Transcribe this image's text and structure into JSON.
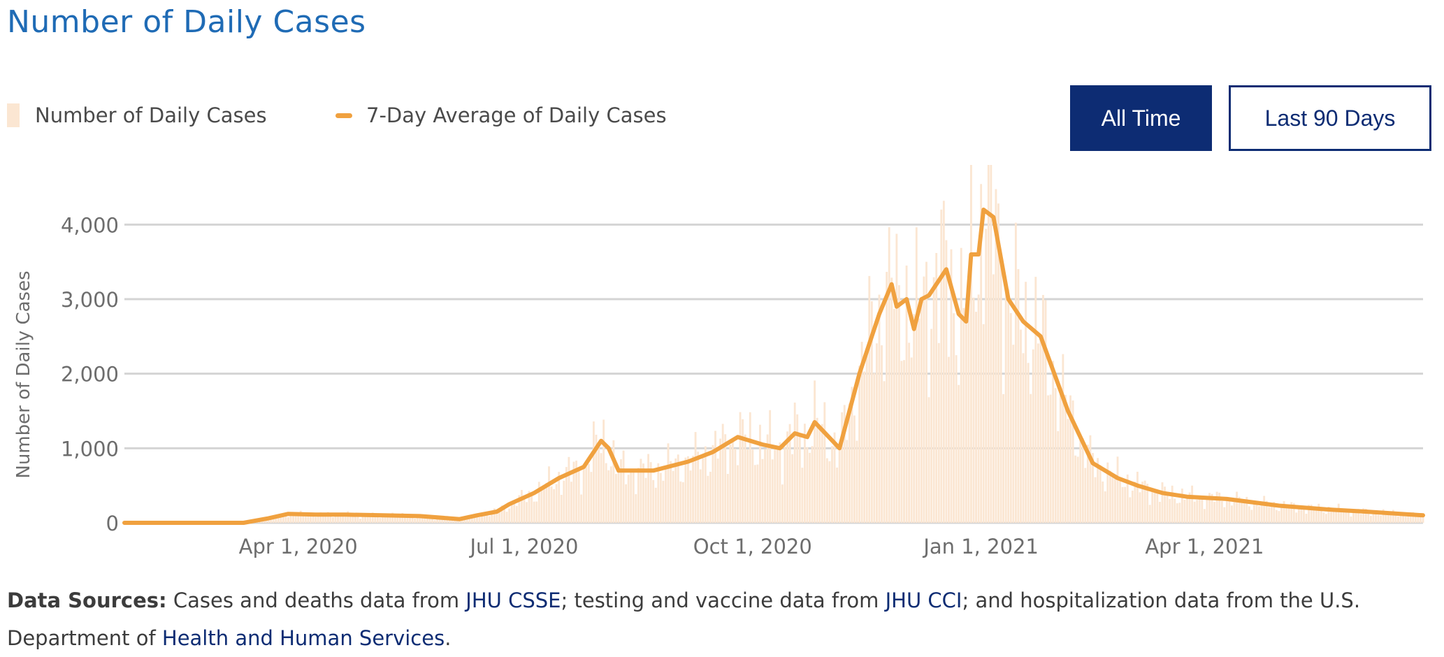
{
  "header": {
    "title": "Number of Daily Cases"
  },
  "legend": {
    "bars_label": "Number of Daily Cases",
    "line_label": "7-Day Average of Daily Cases"
  },
  "buttons": {
    "all_time": "All Time",
    "last_90_days": "Last 90 Days",
    "active": "all_time"
  },
  "colors": {
    "title": "#1f6bb5",
    "bar": "#fbe6d2",
    "line": "#f0a13f",
    "grid": "#d4d4d4",
    "axis_text": "#6d6d6d",
    "button_dark": "#0d2c73",
    "link": "#0d2c73"
  },
  "footer": {
    "label": "Data Sources:",
    "t1": " Cases and deaths data from ",
    "link1": "JHU CSSE",
    "t2": "; testing and vaccine data from ",
    "link2": "JHU CCI",
    "t3": "; and hospitalization data from the U.S.",
    "t4": "Department of ",
    "link3": "Health and Human Services",
    "t5": "."
  },
  "chart_data": {
    "type": "bar",
    "title": "Number of Daily Cases",
    "ylabel": "Number of Daily Cases",
    "xlabel": "",
    "x_range": [
      "2020-01-22",
      "2021-06-28"
    ],
    "ylim": [
      0,
      4800
    ],
    "y_ticks": [
      0,
      1000,
      2000,
      3000,
      4000
    ],
    "y_tick_labels": [
      "0",
      "1,000",
      "2,000",
      "3,000",
      "4,000"
    ],
    "x_ticks": [
      "2020-04-01",
      "2020-07-01",
      "2020-10-01",
      "2021-01-01",
      "2021-04-01"
    ],
    "x_tick_labels": [
      "Apr 1, 2020",
      "Jul 1, 2020",
      "Oct 1, 2020",
      "Jan 1, 2021",
      "Apr 1, 2021"
    ],
    "grid": true,
    "legend_position": "top-left",
    "series": [
      {
        "name": "Number of Daily Cases",
        "kind": "bar",
        "note": "daily values approximated from the 7-day average with added day-to-day variation",
        "dates": [
          "2020-01-22",
          "2020-03-10",
          "2020-03-20",
          "2020-03-28",
          "2020-04-08",
          "2020-04-20",
          "2020-05-05",
          "2020-05-20",
          "2020-06-05",
          "2020-06-12",
          "2020-06-20",
          "2020-06-25",
          "2020-07-05",
          "2020-07-15",
          "2020-07-25",
          "2020-08-01",
          "2020-08-04",
          "2020-08-08",
          "2020-08-12",
          "2020-08-22",
          "2020-09-05",
          "2020-09-15",
          "2020-09-25",
          "2020-10-05",
          "2020-10-12",
          "2020-10-18",
          "2020-10-23",
          "2020-10-26",
          "2020-11-05",
          "2020-11-13",
          "2020-11-18",
          "2020-11-21",
          "2020-11-26",
          "2020-11-28",
          "2020-12-02",
          "2020-12-05",
          "2020-12-08",
          "2020-12-11",
          "2020-12-14",
          "2020-12-18",
          "2020-12-23",
          "2020-12-26",
          "2020-12-28",
          "2020-12-31",
          "2021-01-02",
          "2021-01-06",
          "2021-01-12",
          "2021-01-18",
          "2021-01-25",
          "2021-02-05",
          "2021-02-15",
          "2021-02-25",
          "2021-03-05",
          "2021-03-15",
          "2021-03-25",
          "2021-04-10",
          "2021-05-01",
          "2021-05-20",
          "2021-06-05",
          "2021-06-28"
        ],
        "values": [
          0,
          0,
          60,
          120,
          110,
          110,
          100,
          90,
          50,
          100,
          150,
          250,
          400,
          600,
          750,
          1100,
          1000,
          700,
          700,
          700,
          820,
          950,
          1150,
          1050,
          1000,
          1200,
          1150,
          1350,
          1000,
          2000,
          2500,
          2800,
          3200,
          2900,
          3000,
          2600,
          3000,
          3050,
          3200,
          3400,
          2800,
          2700,
          3600,
          3600,
          4200,
          4100,
          3000,
          2700,
          2500,
          1500,
          800,
          600,
          500,
          400,
          350,
          320,
          230,
          180,
          150,
          100
        ]
      },
      {
        "name": "7-Day Average of Daily Cases",
        "kind": "line",
        "dates": [
          "2020-01-22",
          "2020-03-10",
          "2020-03-20",
          "2020-03-28",
          "2020-04-08",
          "2020-04-20",
          "2020-05-05",
          "2020-05-20",
          "2020-06-05",
          "2020-06-12",
          "2020-06-20",
          "2020-06-25",
          "2020-07-05",
          "2020-07-15",
          "2020-07-25",
          "2020-08-01",
          "2020-08-04",
          "2020-08-08",
          "2020-08-12",
          "2020-08-22",
          "2020-09-05",
          "2020-09-15",
          "2020-09-25",
          "2020-10-05",
          "2020-10-12",
          "2020-10-18",
          "2020-10-23",
          "2020-10-26",
          "2020-11-05",
          "2020-11-13",
          "2020-11-18",
          "2020-11-21",
          "2020-11-26",
          "2020-11-28",
          "2020-12-02",
          "2020-12-05",
          "2020-12-08",
          "2020-12-11",
          "2020-12-14",
          "2020-12-18",
          "2020-12-23",
          "2020-12-26",
          "2020-12-28",
          "2020-12-31",
          "2021-01-02",
          "2021-01-06",
          "2021-01-12",
          "2021-01-18",
          "2021-01-25",
          "2021-02-05",
          "2021-02-15",
          "2021-02-25",
          "2021-03-05",
          "2021-03-15",
          "2021-03-25",
          "2021-04-10",
          "2021-05-01",
          "2021-05-20",
          "2021-06-05",
          "2021-06-28"
        ],
        "values": [
          0,
          0,
          60,
          120,
          110,
          110,
          100,
          90,
          50,
          100,
          150,
          250,
          400,
          600,
          750,
          1100,
          1000,
          700,
          700,
          700,
          820,
          950,
          1150,
          1050,
          1000,
          1200,
          1150,
          1350,
          1000,
          2000,
          2500,
          2800,
          3200,
          2900,
          3000,
          2600,
          3000,
          3050,
          3200,
          3400,
          2800,
          2700,
          3600,
          3600,
          4200,
          4100,
          3000,
          2700,
          2500,
          1500,
          800,
          600,
          500,
          400,
          350,
          320,
          230,
          180,
          150,
          100
        ]
      }
    ]
  }
}
